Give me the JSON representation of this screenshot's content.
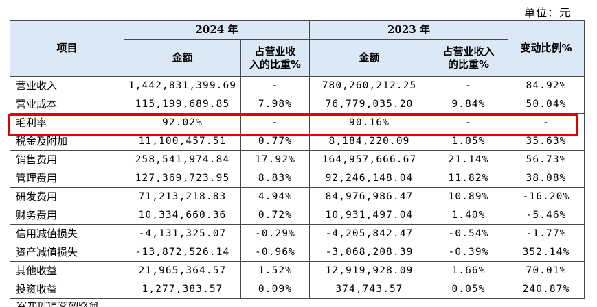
{
  "unit_label": "单位：元",
  "header": {
    "item": "项目",
    "year_2024": "2024 年",
    "year_2023": "2023 年",
    "amount": "金额",
    "share_line1": "占营业收",
    "share_line2": "入的比重%",
    "share2023_line1": "占营业收入",
    "share2023_line2": "的比重%",
    "change": "变动比例%"
  },
  "rows": [
    {
      "item": "营业收入",
      "a2024": "1,442,831,399.69",
      "s2024": "-",
      "a2023": "780,260,212.25",
      "s2023": "-",
      "chg": "84.92%"
    },
    {
      "item": "营业成本",
      "a2024": "115,199,689.85",
      "s2024": "7.98%",
      "a2023": "76,779,035.20",
      "s2023": "9.84%",
      "chg": "50.04%"
    },
    {
      "item": "毛利率",
      "a2024": "92.02%",
      "s2024": "-",
      "a2023": "90.16%",
      "s2023": "-",
      "chg": "-"
    },
    {
      "item": "税金及附加",
      "a2024": "11,100,457.51",
      "s2024": "0.77%",
      "a2023": "8,184,220.09",
      "s2023": "1.05%",
      "chg": "35.63%"
    },
    {
      "item": "销售费用",
      "a2024": "258,541,974.84",
      "s2024": "17.92%",
      "a2023": "164,957,666.67",
      "s2023": "21.14%",
      "chg": "56.73%"
    },
    {
      "item": "管理费用",
      "a2024": "127,369,723.95",
      "s2024": "8.83%",
      "a2023": "92,246,148.04",
      "s2023": "11.82%",
      "chg": "38.08%"
    },
    {
      "item": "研发费用",
      "a2024": "71,213,218.83",
      "s2024": "4.94%",
      "a2023": "84,976,986.47",
      "s2023": "10.89%",
      "chg": "-16.20%"
    },
    {
      "item": "财务费用",
      "a2024": "10,334,660.36",
      "s2024": "0.72%",
      "a2023": "10,931,497.04",
      "s2023": "1.40%",
      "chg": "-5.46%"
    },
    {
      "item": "信用减值损失",
      "a2024": "-4,131,325.07",
      "s2024": "-0.29%",
      "a2023": "-4,205,842.47",
      "s2023": "-0.54%",
      "chg": "-1.77%"
    },
    {
      "item": "资产减值损失",
      "a2024": "-13,872,526.14",
      "s2024": "-0.96%",
      "a2023": "-3,068,208.39",
      "s2023": "-0.39%",
      "chg": "352.14%"
    },
    {
      "item": "其他收益",
      "a2024": "21,965,364.57",
      "s2024": "1.52%",
      "a2023": "12,919,928.09",
      "s2023": "1.66%",
      "chg": "70.01%"
    },
    {
      "item": "投资收益",
      "a2024": "1,277,383.57",
      "s2024": "0.09%",
      "a2023": "374,743.57",
      "s2023": "0.05%",
      "chg": "240.87%"
    }
  ],
  "cut_row_item": "公允价值变动收益"
}
